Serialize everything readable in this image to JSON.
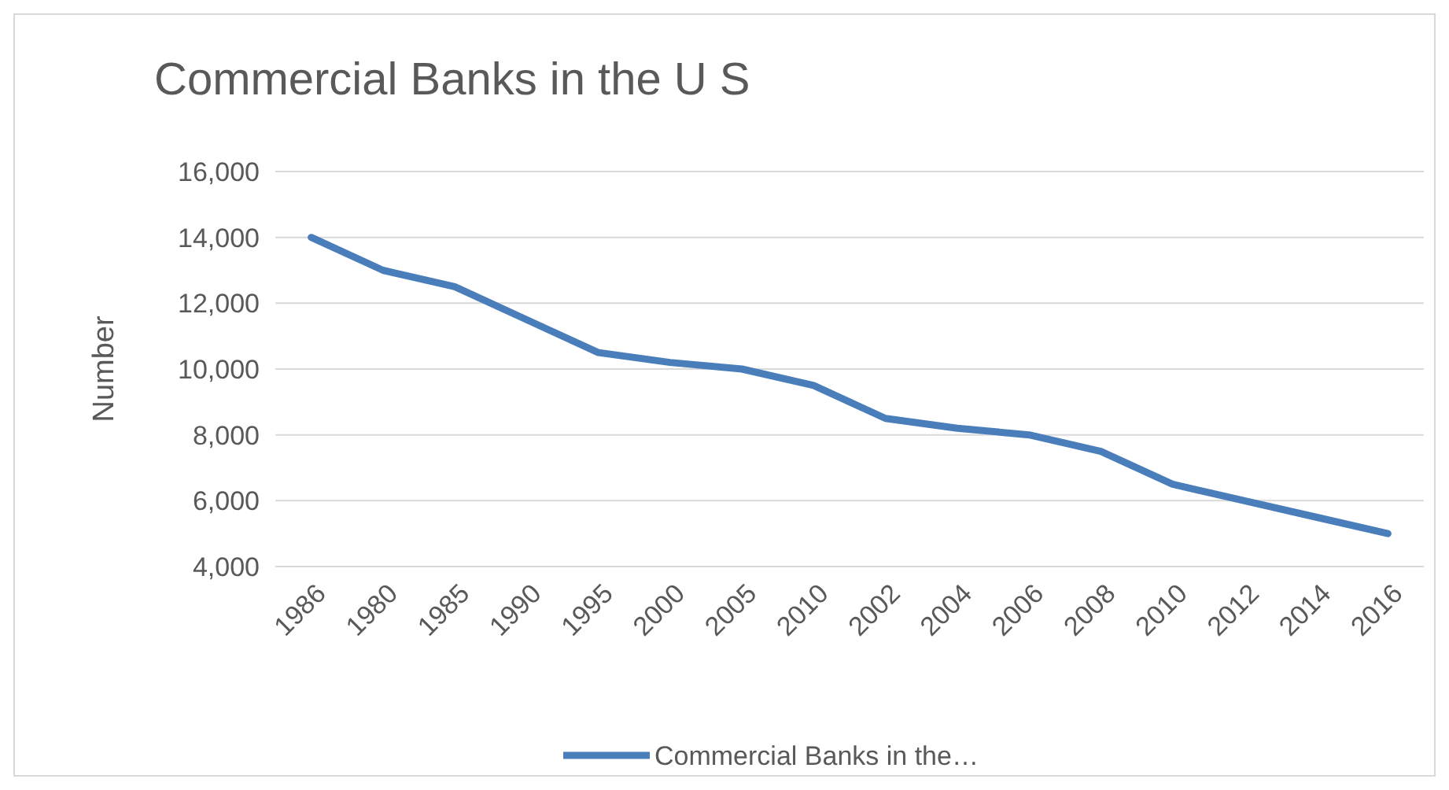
{
  "chart_data": {
    "type": "line",
    "title": "Commercial Banks in the U S",
    "ylabel": "Number",
    "categories": [
      "1986",
      "1980",
      "1985",
      "1990",
      "1995",
      "2000",
      "2005",
      "2010",
      "2002",
      "2004",
      "2006",
      "2008",
      "2010",
      "2012",
      "2014",
      "2016"
    ],
    "series": [
      {
        "name": "Commercial Banks in the…",
        "color": "#4a7ebb",
        "values": [
          14000,
          13000,
          12500,
          11500,
          10500,
          10200,
          10000,
          9500,
          8500,
          8200,
          8000,
          7500,
          6500,
          6000,
          5500,
          5000
        ]
      }
    ],
    "ylim": [
      4000,
      16000
    ],
    "yticks": [
      {
        "value": 4000,
        "label": "4,000"
      },
      {
        "value": 6000,
        "label": "6,000"
      },
      {
        "value": 8000,
        "label": "8,000"
      },
      {
        "value": 10000,
        "label": "10,000"
      },
      {
        "value": 12000,
        "label": "12,000"
      },
      {
        "value": 14000,
        "label": "14,000"
      },
      {
        "value": 16000,
        "label": "16,000"
      }
    ],
    "grid": "y",
    "legend": "bottom",
    "line_style": "solid"
  }
}
